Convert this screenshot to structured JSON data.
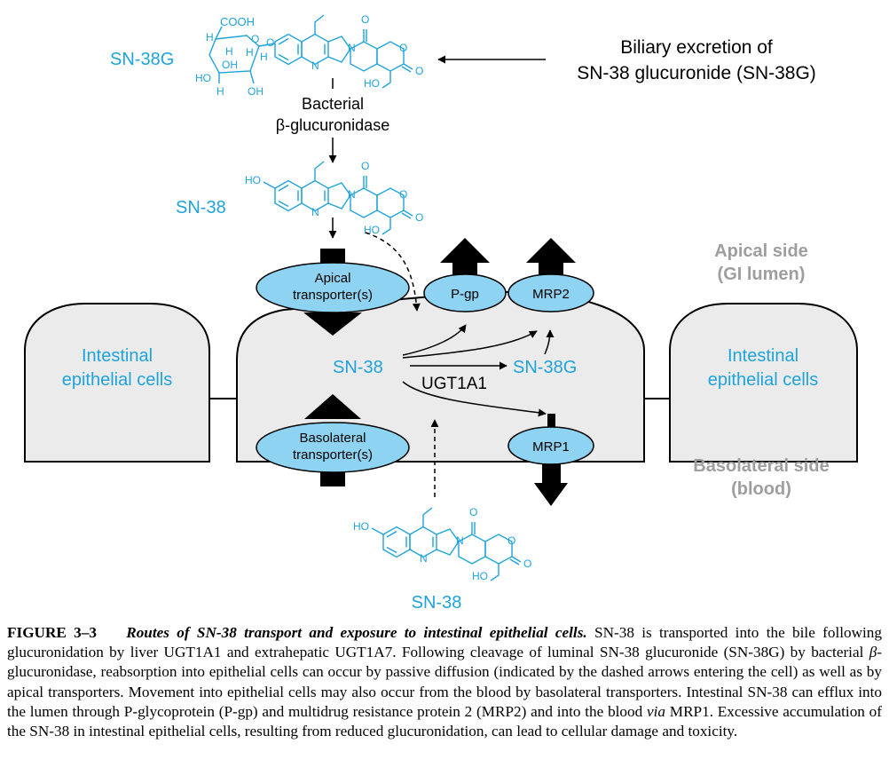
{
  "labels": {
    "sn38g_top": "SN-38G",
    "biliary_line1": "Biliary excretion of",
    "biliary_line2": "SN-38 glucuronide (SN-38G)",
    "bacterial_line1": "Bacterial",
    "bacterial_line2": "β-glucuronidase",
    "sn38_top": "SN-38",
    "apical_side_line1": "Apical side",
    "apical_side_line2": "(GI lumen)",
    "basolateral_side_line1": "Basolateral side",
    "basolateral_side_line2": "(blood)",
    "left_cell_line1": "Intestinal",
    "left_cell_line2": "epithelial cells",
    "right_cell_line1": "Intestinal",
    "right_cell_line2": "epithelial cells",
    "apical_transporter_line1": "Apical",
    "apical_transporter_line2": "transporter(s)",
    "basolateral_transporter_line1": "Basolateral",
    "basolateral_transporter_line2": "transporter(s)",
    "pgp": "P-gp",
    "mrp2": "MRP2",
    "mrp1": "MRP1",
    "sn38_inside": "SN-38",
    "ugt1a1": "UGT1A1",
    "sn38g_inside": "SN-38G",
    "sn38_bottom": "SN-38"
  },
  "chem": {
    "cooh": "COOH",
    "o": "O",
    "n": "N",
    "h": "H",
    "oh": "OH",
    "ho": "HO"
  },
  "caption": {
    "figure_number": "FIGURE 3–3",
    "title": "Routes of SN-38 transport and exposure to intestinal epithelial cells.",
    "part1": " SN-38 is transported into the bile following glucuronidation by liver UGT1A1 and extrahepatic UGT1A7. Following cleavage of luminal SN-38 glucuronide (SN-38G) by bacterial ",
    "beta": "β",
    "part2": "-glucuronidase, reabsorption into epithelial cells can occur by passive diffusion (indicated by the dashed arrows entering the cell) as well as by apical transporters. Movement into epithelial cells may also occur from the blood by basolateral transporters. Intestinal SN-38 can efflux into the lumen through P-glycoprotein (P-gp) and multidrug resistance protein 2 (MRP2) and into the blood ",
    "via": "via",
    "part3": " MRP1. Excessive accumulation of the SN-38 in intestinal epithelial cells, resulting from reduced glucuronidation, can lead to cellular damage and toxicity."
  },
  "colors": {
    "blue_text": "#1fa3dc",
    "transporter_fill": "#8fd3f2",
    "cell_fill": "#ebebeb",
    "gray_label": "#9e9e9e"
  }
}
